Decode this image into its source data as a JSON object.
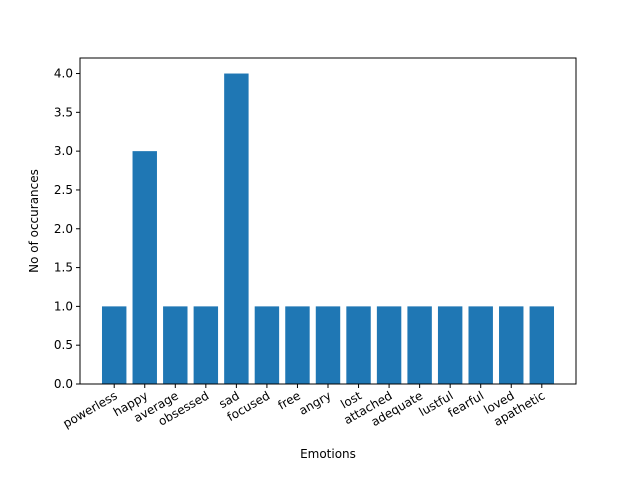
{
  "chart_data": {
    "type": "bar",
    "categories": [
      "powerless",
      "happy",
      "average",
      "obsessed",
      "sad",
      "focused",
      "free",
      "angry",
      "lost",
      "attached",
      "adequate",
      "lustful",
      "fearful",
      "loved",
      "apathetic"
    ],
    "values": [
      1,
      3,
      1,
      1,
      4,
      1,
      1,
      1,
      1,
      1,
      1,
      1,
      1,
      1,
      1
    ],
    "title": "",
    "xlabel": "Emotions",
    "ylabel": "No of occurances",
    "ylim": [
      0,
      4.2
    ],
    "yticks": [
      "0.0",
      "0.5",
      "1.0",
      "1.5",
      "2.0",
      "2.5",
      "3.0",
      "3.5",
      "4.0"
    ],
    "bar_color": "#1f77b4",
    "grid": false,
    "legend": "none"
  }
}
